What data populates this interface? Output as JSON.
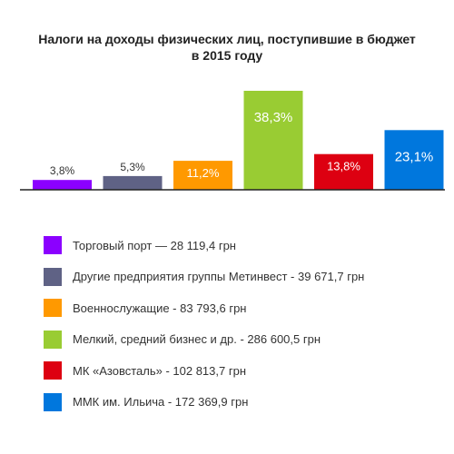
{
  "chart_data": {
    "type": "bar",
    "title_lines": [
      "Налоги на доходы физических лиц, поступившие в бюджет",
      "в 2015 году"
    ],
    "categories": [
      "Торговый порт — 28 119,4 грн",
      "Другие предприятия группы Метинвест - 39 671,7 грн",
      "Военнослужащие - 83 793,6 грн",
      "Мелкий, средний бизнес и др. - 286 600,5 грн",
      "МК «Азовсталь» - 102 813,7 грн",
      "ММК им. Ильича - 172 369,9 грн"
    ],
    "values": [
      3.8,
      5.3,
      11.2,
      38.3,
      13.8,
      23.1
    ],
    "value_labels": [
      "3,8%",
      "5,3%",
      "11,2%",
      "38,3%",
      "13,8%",
      "23,1%"
    ],
    "colors": [
      "#8B00FF",
      "#5F6285",
      "#FF9900",
      "#99CC33",
      "#DD0011",
      "#0077DD"
    ],
    "label_position": [
      "above",
      "above",
      "inside",
      "inside",
      "inside",
      "inside"
    ],
    "ylim": [
      0,
      38.3
    ],
    "grid": false,
    "legend_position": "bottom"
  }
}
